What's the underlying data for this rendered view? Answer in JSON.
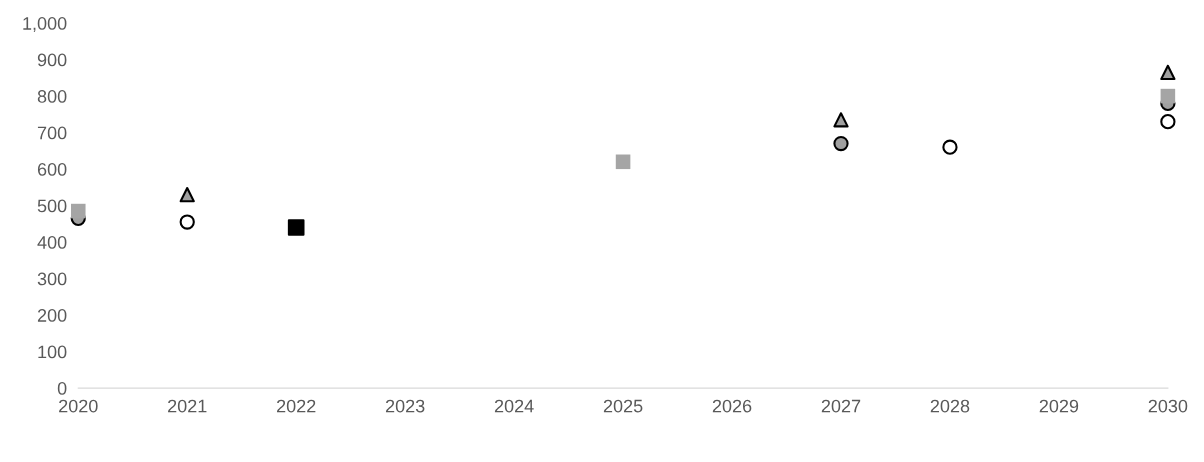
{
  "chart_data": {
    "type": "scatter",
    "x": [
      2020,
      2021,
      2022,
      2023,
      2024,
      2025,
      2026,
      2027,
      2028,
      2029,
      2030
    ],
    "xlim": [
      2020,
      2030
    ],
    "xticks": [
      2020,
      2021,
      2022,
      2023,
      2024,
      2025,
      2026,
      2027,
      2028,
      2029,
      2030
    ],
    "ylim": [
      0,
      1000
    ],
    "yticks": [
      0,
      100,
      200,
      300,
      400,
      500,
      600,
      700,
      800,
      900,
      {
        "value": 1000,
        "label": "1,000"
      }
    ],
    "grid": false,
    "series": [
      {
        "color": "#000000",
        "marker": "square",
        "values": [
          null,
          null,
          440,
          null,
          null,
          null,
          null,
          null,
          null,
          null,
          null
        ]
      },
      {
        "color": "#ffffff",
        "marker": "circle",
        "values": [
          null,
          455,
          null,
          null,
          null,
          null,
          null,
          null,
          660,
          null,
          730
        ]
      },
      {
        "color": "#a0a0a0",
        "marker": "circle",
        "values": [
          465,
          null,
          null,
          null,
          null,
          null,
          null,
          670,
          null,
          null,
          780
        ]
      },
      {
        "color": "#a5a5a5",
        "marker": "square",
        "values": [
          485,
          null,
          null,
          null,
          null,
          620,
          null,
          null,
          null,
          null,
          800
        ]
      },
      {
        "color": "#a0a0a0",
        "marker": "triangle",
        "values": [
          null,
          530,
          null,
          null,
          null,
          null,
          null,
          735,
          null,
          null,
          865
        ]
      }
    ]
  }
}
